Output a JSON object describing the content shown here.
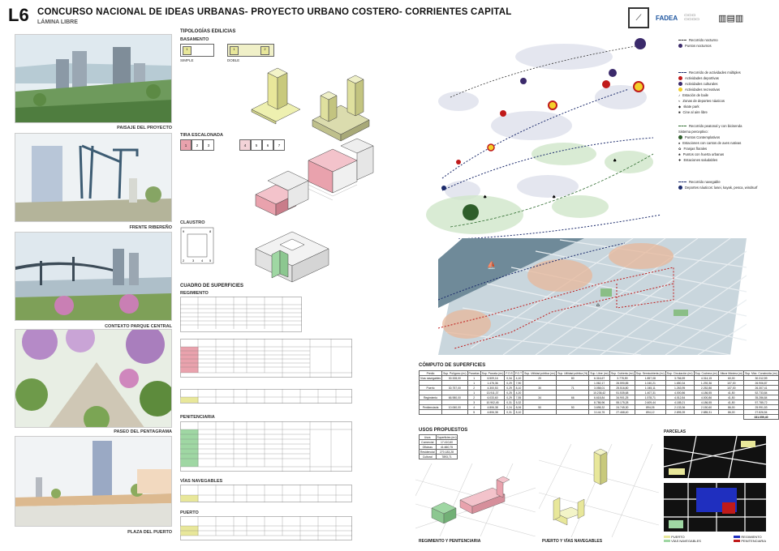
{
  "header": {
    "code": "L6",
    "title": "CONCURSO NACIONAL DE IDEAS URBANAS- PROYECTO URBANO COSTERO- CORRIENTES CAPITAL",
    "subtitle": "LÁMINA LIBRE",
    "logo_fadea": "FADEA"
  },
  "photos": [
    {
      "caption": "PAISAJE DEL PROYECTO"
    },
    {
      "caption": "FRENTE RIBEREÑO"
    },
    {
      "caption": "CONTEXTO PARQUE CENTRAL"
    },
    {
      "caption": "PASEO DEL PENTAGRAMA"
    },
    {
      "caption": "PLAZA DEL PUERTO"
    }
  ],
  "typologies": {
    "title": "TIPOLOGÍAS EDILICIAS",
    "basamento": "BASAMENTO",
    "simple": "SIMPLE",
    "doble": "DOBLE",
    "tira": "TIRA ESCALONADA",
    "claustro": "CLAUSTRO",
    "tira_cells_a": [
      "1",
      "2",
      "3"
    ],
    "tira_cells_b": [
      "4",
      "5",
      "6",
      "7"
    ]
  },
  "superficies": {
    "title": "CUADRO DE SUPERFICIES",
    "regimiento": "REGIMIENTO",
    "penitenciaria": "PENITENCIARIA",
    "vias": "VÍAS NAVEGABLES",
    "puerto": "PUERTO"
  },
  "legend": {
    "nocturno": "Recorrido nocturno",
    "nocturno_pts": "Puntos nocturnos",
    "actividades": "Recorrido de actividades múltiples",
    "deportivas": "Actividades deportivas",
    "culturales": "Actividades culturales",
    "recreativas": "Actividades recreativas",
    "baile": "Estación de baile",
    "zonas": "Zonas de deportes náuticos",
    "skate": "skate park",
    "cine": "Cine al aire libre",
    "peatonal": "Recorrido peatonal y con bicisenda",
    "perceptivo": "Sistema perceptivo:",
    "contemplativos": "Puntos Contemplativos",
    "cantos": "Estaciones con cantos de aves nativas",
    "franjas": "Franjas florales",
    "huerta": "Puntos con huerta urbanas",
    "saludables": "Estaciones saludables",
    "navegable": "Recorrido navegable",
    "nauticos": "Deportes náuticos: lasei, kayak, pesca, windsurf"
  },
  "computo": {
    "title": "CÓMPUTO DE SUPERFICIES",
    "headers": [
      "Predio",
      "Sup. Polígono (m²)",
      "Parcelas",
      "Sup. Parcela (m²)",
      "F.O.S",
      "F.O.T",
      "Sup. Utilidad pública (m²)",
      "Sup. Utilidad pública (%)",
      "Sup. Libre (m²)",
      "Sup. Cubierta (m²)",
      "Sup. Semicubierta (m²)",
      "Sup. Circulación (m²)",
      "Sup. Cochera (m²)",
      "Altura Máxima (m)",
      "Sup. Máx. Construida (m²)"
    ],
    "rows": [
      [
        "Vías navegables",
        "30.328,00",
        "1",
        "6.509,16",
        "0,34",
        "4,10",
        "20",
        "80",
        "6.316,67",
        "3.778,59",
        "1.857,08",
        "3.766,59",
        "4.314,15",
        "60,00",
        "30.312,59"
      ],
      [
        "",
        "",
        "1",
        "1.476,36",
        "0,29",
        "7,90",
        "",
        "",
        "1.062,17",
        "26.590,85",
        "1.040,21",
        "1.650,34",
        "1.292,36",
        "107,00",
        "26.906,87"
      ],
      [
        "Puerto",
        "30.757,00",
        "2",
        "4.300,53",
        "0,29",
        "8,10",
        "30",
        "71",
        "3.058,01",
        "25.516,80",
        "1.045,11",
        "1.263,95",
        "2.252,86",
        "107,00",
        "26.307,41"
      ],
      [
        "",
        "",
        "1",
        "13.911,37",
        "0,25",
        "4,20",
        "",
        "",
        "10.236,42",
        "51.535,68",
        "1.407,31",
        "4.000,86",
        "4.186,55",
        "41,50",
        "52.733,84"
      ],
      [
        "Regimiento",
        "66.980,00",
        "2",
        "6.033,60",
        "0,29",
        "7,55",
        "34",
        "66",
        "6.618,84",
        "34.901,25",
        "1.578,71",
        "4.012,84",
        "4.000,86",
        "41,50",
        "35.286,84"
      ],
      [
        "",
        "",
        "3",
        "10.902,45",
        "0,31",
        "5,32",
        "",
        "",
        "8.786,96",
        "55.175,28",
        "2.609,44",
        "4.185,21",
        "4.186,55",
        "41,50",
        "57.785,72"
      ],
      [
        "Penitenciaria",
        "10.060,00",
        "4",
        "4.806,38",
        "0,24",
        "8,06",
        "50",
        "50",
        "3.698,32",
        "24.745,30",
        "894,05",
        "2.133,36",
        "2.150,60",
        "86,00",
        "25.991,53"
      ],
      [
        "",
        "",
        "5",
        "4.806,38",
        "0,31",
        "8,10",
        "",
        "",
        "3.144,76",
        "27.468,40",
        "894,12",
        "2.895,39",
        "2.885,31",
        "86,00",
        "27.826,54"
      ]
    ],
    "total": "331.059,40"
  },
  "usos": {
    "title": "USOS PROPUESTOS",
    "headers": [
      "Usos",
      "Superficies (m²)"
    ],
    "rows": [
      [
        "Comercial",
        "17.410,60"
      ],
      [
        "Oficinas",
        "41.660,75"
      ],
      [
        "Residencial",
        "270.183,28"
      ],
      [
        "Cultural",
        "7893,71"
      ]
    ]
  },
  "bottom": {
    "cap_reg": "REGIMIENTO Y PENITENCIARIA",
    "cap_puerto": "PUERTO Y VÍAS NAVEGABLES",
    "parcelas": "PARCELAS",
    "leg_puerto": "PUERTO",
    "leg_vias": "VÍAS NAVEGABLES",
    "leg_reg": "REGIMIENTO",
    "leg_pen": "PENITENCIARIA"
  },
  "colors": {
    "yellow": "#e8e79a",
    "red": "#e9a2ad",
    "green": "#9fd7a3",
    "navy": "#1b2a6b"
  }
}
